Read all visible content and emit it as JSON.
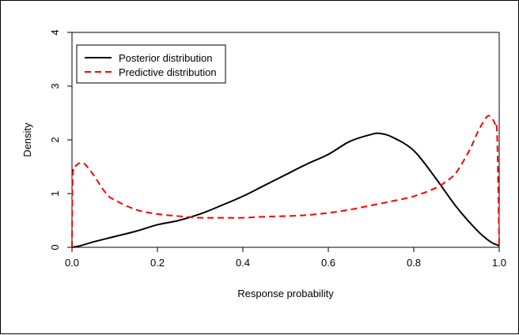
{
  "chart_data": {
    "type": "line",
    "title": "",
    "xlabel": "Response probability",
    "ylabel": "Density",
    "xlim": [
      0,
      1
    ],
    "ylim": [
      0,
      4
    ],
    "x_ticks": [
      "0.0",
      "0.2",
      "0.4",
      "0.6",
      "0.8",
      "1.0"
    ],
    "y_ticks": [
      "0",
      "1",
      "2",
      "3",
      "4"
    ],
    "grid": false,
    "legend_position": "top-left",
    "series": [
      {
        "name": "Posterior distribution",
        "color": "#000000",
        "dash": "solid",
        "x": [
          0.0,
          0.02,
          0.05,
          0.1,
          0.15,
          0.2,
          0.25,
          0.3,
          0.35,
          0.4,
          0.45,
          0.5,
          0.55,
          0.6,
          0.65,
          0.7,
          0.72,
          0.75,
          0.8,
          0.85,
          0.9,
          0.95,
          0.98,
          1.0
        ],
        "y": [
          0.0,
          0.03,
          0.1,
          0.2,
          0.3,
          0.42,
          0.5,
          0.62,
          0.78,
          0.95,
          1.15,
          1.35,
          1.55,
          1.73,
          1.97,
          2.1,
          2.12,
          2.05,
          1.8,
          1.3,
          0.75,
          0.3,
          0.1,
          0.03
        ]
      },
      {
        "name": "Predictive distribution",
        "color": "#ff0000",
        "dash": "dashed",
        "x": [
          0.0,
          0.002,
          0.01,
          0.02,
          0.03,
          0.05,
          0.08,
          0.1,
          0.15,
          0.2,
          0.25,
          0.3,
          0.35,
          0.4,
          0.45,
          0.5,
          0.55,
          0.6,
          0.65,
          0.7,
          0.75,
          0.8,
          0.85,
          0.88,
          0.9,
          0.93,
          0.95,
          0.97,
          0.98,
          0.99,
          0.995,
          1.0
        ],
        "y": [
          0.0,
          1.35,
          1.52,
          1.57,
          1.55,
          1.35,
          1.0,
          0.88,
          0.7,
          0.62,
          0.58,
          0.55,
          0.55,
          0.55,
          0.57,
          0.58,
          0.6,
          0.64,
          0.7,
          0.78,
          0.86,
          0.95,
          1.1,
          1.25,
          1.4,
          1.8,
          2.15,
          2.42,
          2.43,
          2.3,
          2.1,
          0.0
        ]
      }
    ]
  }
}
